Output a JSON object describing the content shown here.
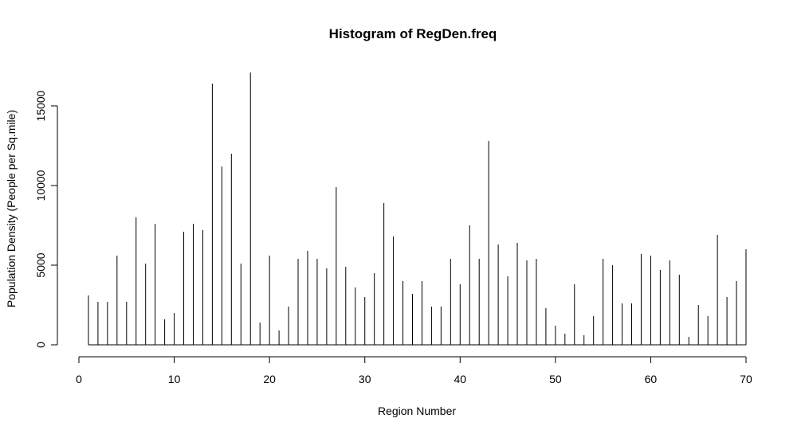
{
  "chart_data": {
    "type": "bar",
    "title": "Histogram of RegDen.freq",
    "xlabel": "Region Number",
    "ylabel": "Population Density (People per Sq.mile)",
    "xlim": [
      0,
      70
    ],
    "ylim": [
      0,
      17000
    ],
    "x_ticks": [
      0,
      10,
      20,
      30,
      40,
      50,
      60,
      70
    ],
    "y_ticks": [
      0,
      5000,
      10000,
      15000
    ],
    "x": [
      1,
      2,
      3,
      4,
      5,
      6,
      7,
      8,
      9,
      10,
      11,
      12,
      13,
      14,
      15,
      16,
      17,
      18,
      19,
      20,
      21,
      22,
      23,
      24,
      25,
      26,
      27,
      28,
      29,
      30,
      31,
      32,
      33,
      34,
      35,
      36,
      37,
      38,
      39,
      40,
      41,
      42,
      43,
      44,
      45,
      46,
      47,
      48,
      49,
      50,
      51,
      52,
      53,
      54,
      55,
      56,
      57,
      58,
      59,
      60,
      61,
      62,
      63,
      64,
      65,
      66,
      67,
      68,
      69,
      70
    ],
    "values": [
      3100,
      2700,
      2700,
      5600,
      2700,
      8000,
      5100,
      7600,
      1600,
      2000,
      7100,
      7600,
      7200,
      16400,
      11200,
      12000,
      5100,
      17100,
      1400,
      5600,
      900,
      2400,
      5400,
      5900,
      5400,
      4800,
      9900,
      4900,
      3600,
      3000,
      4500,
      8900,
      6800,
      4000,
      3200,
      4000,
      2400,
      2400,
      5400,
      3800,
      7500,
      5400,
      12800,
      6300,
      4300,
      6400,
      5300,
      5400,
      2300,
      1200,
      700,
      3800,
      600,
      1800,
      5400,
      5000,
      2600,
      2600,
      5700,
      5600,
      4700,
      5300,
      4400,
      500,
      2500,
      1800,
      6900,
      3000,
      4000,
      6000
    ],
    "grid": false
  }
}
